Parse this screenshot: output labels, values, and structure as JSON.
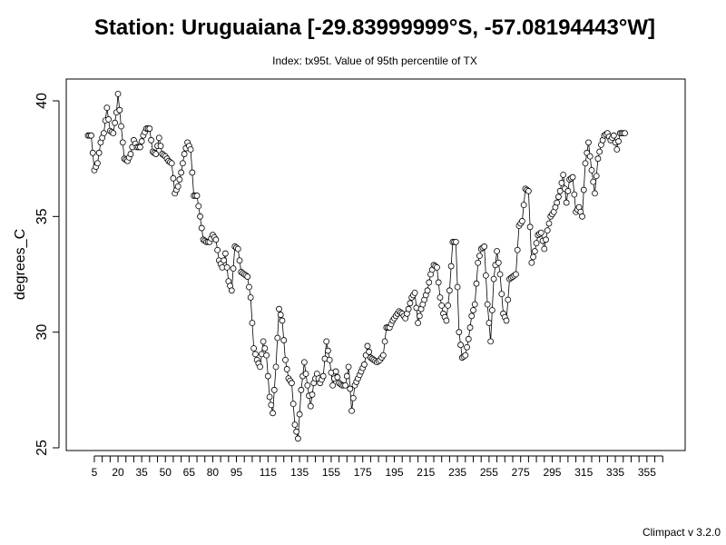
{
  "chart_data": {
    "type": "line",
    "title": "Station: Uruguaiana [-29.83999999°S, -57.08194443°W]",
    "subtitle": "Index: tx95t. Value of 95th percentile of TX",
    "xlabel": "",
    "ylabel": "degrees_C",
    "xlim": [
      1,
      366
    ],
    "ylim": [
      25,
      40
    ],
    "grid": false,
    "legend": "none",
    "x_tick_labels": [
      "5",
      "20",
      "35",
      "50",
      "65",
      "80",
      "95",
      "115",
      "135",
      "155",
      "175",
      "195",
      "215",
      "235",
      "255",
      "275",
      "295",
      "315",
      "335",
      "355"
    ],
    "y_ticks": [
      25,
      30,
      35,
      40
    ],
    "series": [
      {
        "line_style": "points-and-lines",
        "anchors": [
          [
            1,
            38.5
          ],
          [
            3,
            38.5
          ],
          [
            5,
            37.0
          ],
          [
            7,
            37.3
          ],
          [
            9,
            38.2
          ],
          [
            11,
            38.6
          ],
          [
            13,
            39.7
          ],
          [
            15,
            38.7
          ],
          [
            17,
            38.6
          ],
          [
            19,
            39.5
          ],
          [
            20,
            40.3
          ],
          [
            22,
            38.9
          ],
          [
            24,
            37.5
          ],
          [
            26,
            37.4
          ],
          [
            28,
            37.7
          ],
          [
            30,
            38.3
          ],
          [
            32,
            38.0
          ],
          [
            34,
            38.0
          ],
          [
            36,
            38.5
          ],
          [
            38,
            38.8
          ],
          [
            40,
            38.8
          ],
          [
            42,
            37.8
          ],
          [
            44,
            37.7
          ],
          [
            46,
            38.4
          ],
          [
            48,
            37.7
          ],
          [
            50,
            37.6
          ],
          [
            52,
            37.4
          ],
          [
            54,
            37.3
          ],
          [
            56,
            36.0
          ],
          [
            58,
            36.3
          ],
          [
            60,
            36.9
          ],
          [
            62,
            37.7
          ],
          [
            64,
            38.2
          ],
          [
            66,
            37.9
          ],
          [
            68,
            35.9
          ],
          [
            70,
            35.9
          ],
          [
            72,
            35.0
          ],
          [
            74,
            34.0
          ],
          [
            76,
            33.9
          ],
          [
            78,
            33.9
          ],
          [
            80,
            34.2
          ],
          [
            82,
            34.0
          ],
          [
            84,
            33.1
          ],
          [
            86,
            32.8
          ],
          [
            88,
            33.4
          ],
          [
            90,
            32.2
          ],
          [
            92,
            31.8
          ],
          [
            94,
            33.7
          ],
          [
            96,
            33.6
          ],
          [
            98,
            32.6
          ],
          [
            100,
            32.5
          ],
          [
            102,
            32.4
          ],
          [
            104,
            31.5
          ],
          [
            106,
            29.3
          ],
          [
            108,
            28.8
          ],
          [
            110,
            28.5
          ],
          [
            112,
            29.6
          ],
          [
            114,
            29.0
          ],
          [
            116,
            27.2
          ],
          [
            118,
            26.5
          ],
          [
            120,
            28.5
          ],
          [
            122,
            31.0
          ],
          [
            124,
            30.5
          ],
          [
            126,
            28.8
          ],
          [
            128,
            28.0
          ],
          [
            130,
            27.8
          ],
          [
            132,
            26.0
          ],
          [
            134,
            25.4
          ],
          [
            136,
            27.5
          ],
          [
            138,
            28.7
          ],
          [
            140,
            27.7
          ],
          [
            142,
            26.8
          ],
          [
            144,
            27.8
          ],
          [
            146,
            28.2
          ],
          [
            148,
            27.8
          ],
          [
            150,
            28.1
          ],
          [
            152,
            29.6
          ],
          [
            154,
            28.8
          ],
          [
            156,
            27.7
          ],
          [
            158,
            28.3
          ],
          [
            160,
            27.8
          ],
          [
            162,
            27.7
          ],
          [
            164,
            27.7
          ],
          [
            166,
            28.5
          ],
          [
            168,
            26.6
          ],
          [
            170,
            27.7
          ],
          [
            172,
            28.0
          ],
          [
            174,
            28.3
          ],
          [
            176,
            28.6
          ],
          [
            178,
            29.4
          ],
          [
            180,
            28.9
          ],
          [
            182,
            28.8
          ],
          [
            184,
            28.7
          ],
          [
            186,
            28.8
          ],
          [
            188,
            29.0
          ],
          [
            190,
            30.2
          ],
          [
            192,
            30.2
          ],
          [
            194,
            30.5
          ],
          [
            196,
            30.7
          ],
          [
            198,
            30.9
          ],
          [
            200,
            30.8
          ],
          [
            202,
            30.6
          ],
          [
            204,
            31.0
          ],
          [
            206,
            31.5
          ],
          [
            208,
            31.7
          ],
          [
            210,
            30.4
          ],
          [
            212,
            31.0
          ],
          [
            214,
            31.4
          ],
          [
            216,
            31.8
          ],
          [
            218,
            32.5
          ],
          [
            220,
            32.9
          ],
          [
            222,
            32.8
          ],
          [
            224,
            31.5
          ],
          [
            226,
            30.8
          ],
          [
            228,
            30.5
          ],
          [
            230,
            31.8
          ],
          [
            232,
            33.9
          ],
          [
            234,
            33.9
          ],
          [
            236,
            30.0
          ],
          [
            238,
            28.9
          ],
          [
            240,
            29.0
          ],
          [
            242,
            29.7
          ],
          [
            244,
            30.7
          ],
          [
            246,
            31.2
          ],
          [
            248,
            33.0
          ],
          [
            250,
            33.6
          ],
          [
            252,
            33.7
          ],
          [
            254,
            31.2
          ],
          [
            256,
            29.6
          ],
          [
            258,
            32.3
          ],
          [
            260,
            33.5
          ],
          [
            262,
            32.5
          ],
          [
            264,
            30.8
          ],
          [
            266,
            30.5
          ],
          [
            268,
            32.3
          ],
          [
            270,
            32.4
          ],
          [
            272,
            32.5
          ],
          [
            274,
            34.6
          ],
          [
            276,
            34.8
          ],
          [
            278,
            36.2
          ],
          [
            280,
            36.1
          ],
          [
            282,
            33.0
          ],
          [
            284,
            33.5
          ],
          [
            286,
            34.2
          ],
          [
            288,
            34.3
          ],
          [
            290,
            33.6
          ],
          [
            292,
            34.4
          ],
          [
            294,
            35.0
          ],
          [
            296,
            35.2
          ],
          [
            298,
            35.6
          ],
          [
            300,
            36.1
          ],
          [
            302,
            36.8
          ],
          [
            304,
            35.6
          ],
          [
            306,
            36.6
          ],
          [
            308,
            36.7
          ],
          [
            310,
            35.2
          ],
          [
            312,
            35.4
          ],
          [
            314,
            35.0
          ],
          [
            316,
            37.3
          ],
          [
            318,
            38.2
          ],
          [
            320,
            37.0
          ],
          [
            322,
            36.0
          ],
          [
            324,
            37.5
          ],
          [
            326,
            38.1
          ],
          [
            328,
            38.5
          ],
          [
            330,
            38.6
          ],
          [
            332,
            38.3
          ],
          [
            334,
            38.5
          ],
          [
            336,
            37.9
          ],
          [
            338,
            38.6
          ]
        ]
      }
    ],
    "caption": "Climpact v 3.2.0"
  }
}
